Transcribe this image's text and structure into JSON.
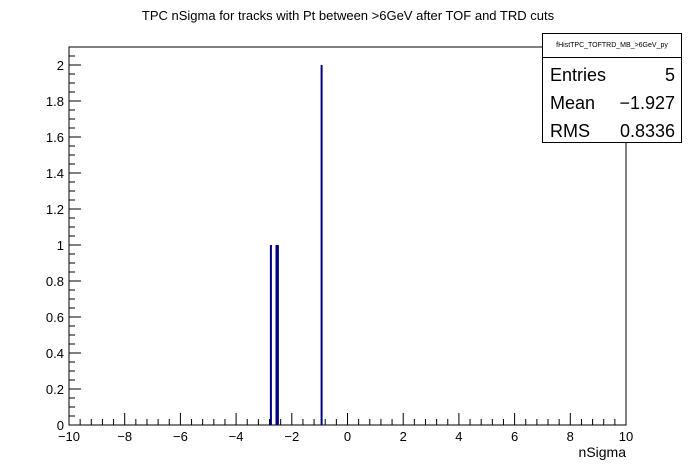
{
  "chart_data": {
    "type": "bar",
    "title": "TPC nSigma for tracks with Pt between >6GeV after TOF and TRD cuts",
    "xlabel": "nSigma",
    "ylabel": "",
    "xlim": [
      -10,
      10
    ],
    "ylim": [
      0,
      2.1
    ],
    "x_ticks": [
      -10,
      -8,
      -6,
      -4,
      -2,
      0,
      2,
      4,
      6,
      8,
      10
    ],
    "y_ticks": [
      0,
      0.2,
      0.4,
      0.6,
      0.8,
      1,
      1.2,
      1.4,
      1.6,
      1.8,
      2
    ],
    "bar_color": "#000080",
    "bins": [
      {
        "x": -2.75,
        "value": 1
      },
      {
        "x": -2.55,
        "value": 1
      },
      {
        "x": -2.5,
        "value": 1
      },
      {
        "x": -0.93,
        "value": 2
      }
    ],
    "grid": false,
    "legend": "top-right"
  },
  "stats": {
    "title": "fHistTPC_TOFTRD_MB_>6GeV_py",
    "entries_label": "Entries",
    "entries_value": "5",
    "mean_label": "Mean",
    "mean_value": "−1.927",
    "rms_label": "RMS",
    "rms_value": "0.8336"
  }
}
